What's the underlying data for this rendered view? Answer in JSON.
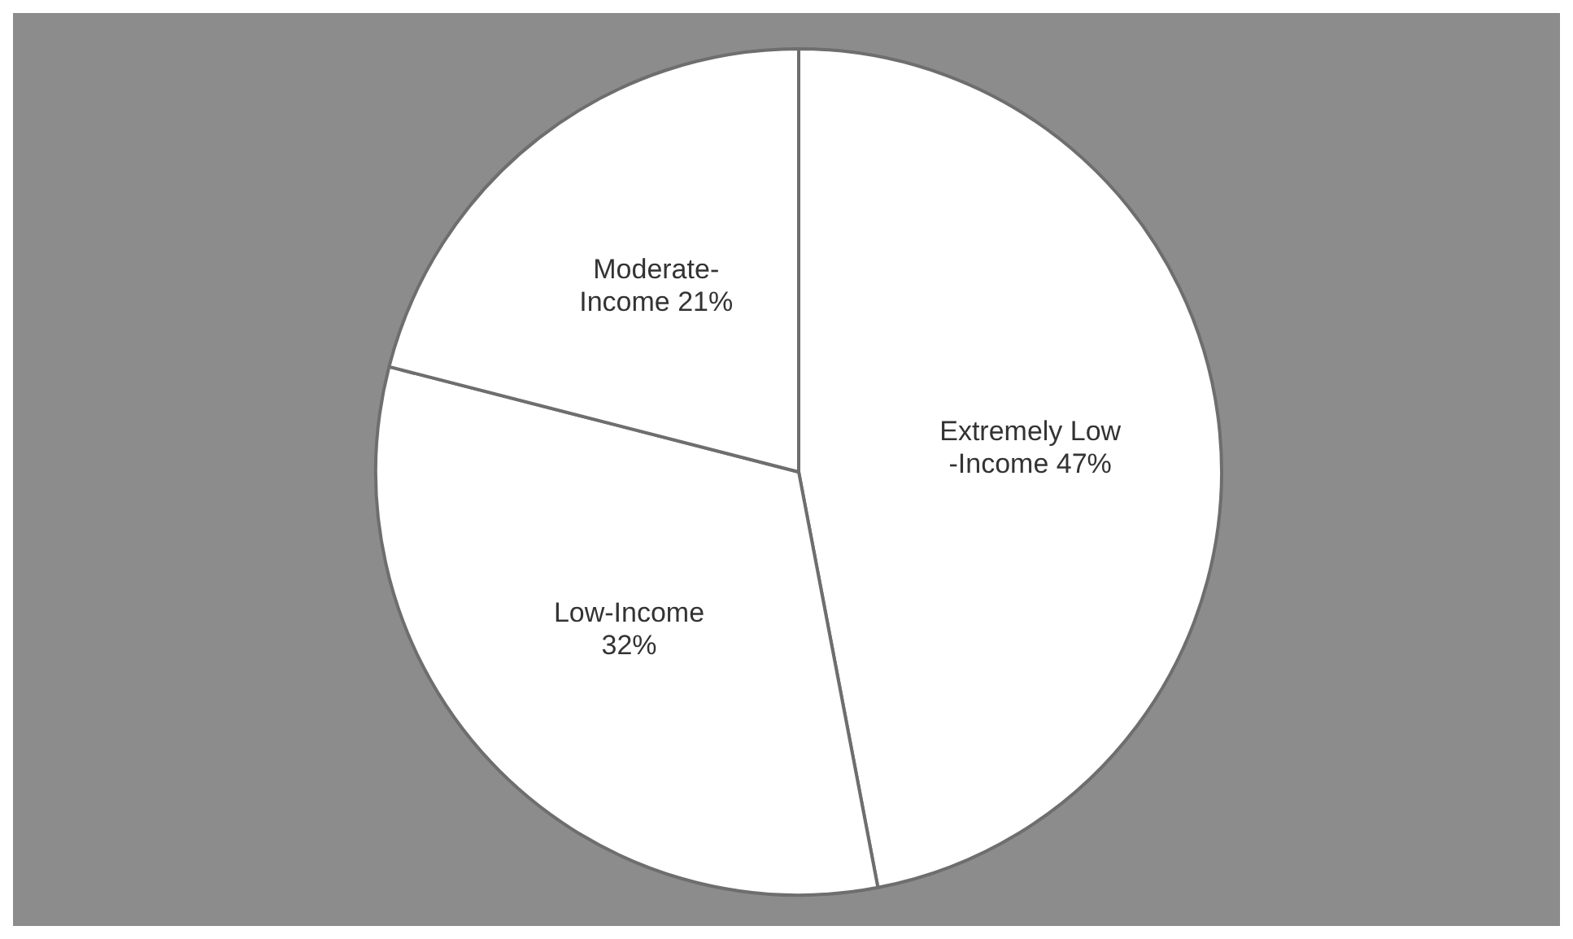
{
  "chart_data": {
    "type": "pie",
    "categories": [
      "Extremely Low -Income",
      "Low-Income",
      "Moderate-Income"
    ],
    "values": [
      47,
      32,
      21
    ],
    "colors": [
      "#ffffff",
      "#ffffff",
      "#ffffff"
    ],
    "value_labels": [
      "47%",
      "32%",
      "21%"
    ]
  }
}
